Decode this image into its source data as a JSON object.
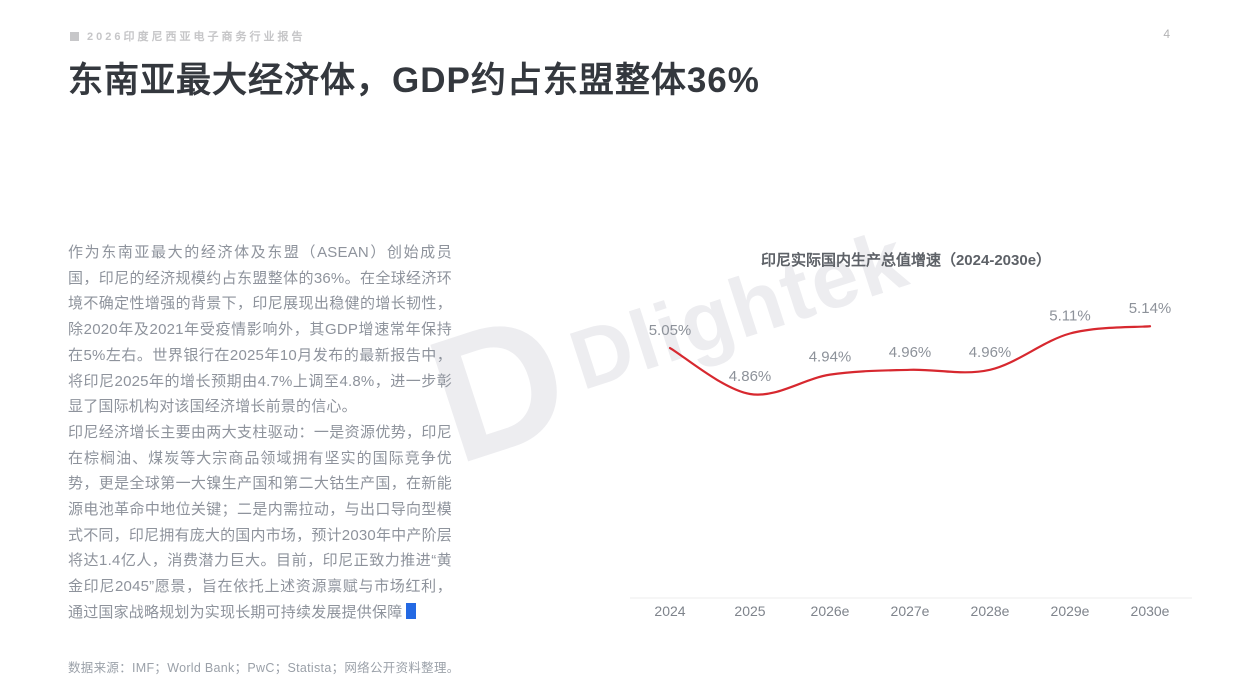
{
  "page": {
    "header": {
      "report_label": "2026印度尼西亚电子商务行业报告",
      "page_number": "4"
    },
    "title": "东南亚最大经济体，GDP约占东盟整体36%",
    "body": {
      "paragraph1": "作为东南亚最大的经济体及东盟（ASEAN）创始成员国，印尼的经济规模约占东盟整体的36%。在全球经济环境不确定性增强的背景下，印尼展现出稳健的增长韧性，除2020年及2021年受疫情影响外，其GDP增速常年保持在5%左右。世界银行在2025年10月发布的最新报告中，将印尼2025年的增长预期由4.7%上调至4.8%，进一步彰显了国际机构对该国经济增长前景的信心。",
      "paragraph2": "印尼经济增长主要由两大支柱驱动：一是资源优势，印尼在棕榈油、煤炭等大宗商品领域拥有坚实的国际竞争优势，更是全球第一大镍生产国和第二大钴生产国，在新能源电池革命中地位关键；二是内需拉动，与出口导向型模式不同，印尼拥有庞大的国内市场，预计2030年中产阶层将达1.4亿人，消费潜力巨大。目前，印尼正致力推进“黄金印尼2045”愿景，旨在依托上述资源禀赋与市场红利，通过国家战略规划为实现长期可持续发展提供保障"
    },
    "footer": {
      "source": "数据来源：IMF；World Bank；PwC；Statista；网络公开资料整理。"
    },
    "watermark": {
      "logo_letter": "D",
      "brand": "Dlightek"
    },
    "accent_blue": "#2469e3"
  },
  "chart_data": {
    "type": "line",
    "title": "印尼实际国内生产总值增速（2024-2030e）",
    "categories": [
      "2024",
      "2025",
      "2026e",
      "2027e",
      "2028e",
      "2029e",
      "2030e"
    ],
    "values": [
      5.05,
      4.86,
      4.94,
      4.96,
      4.96,
      5.11,
      5.14
    ],
    "labels": [
      "5.05%",
      "4.86%",
      "4.94%",
      "4.96%",
      "4.96%",
      "5.11%",
      "5.14%"
    ],
    "xlabel": "",
    "ylabel": "",
    "ylim": [
      4.7,
      5.3
    ],
    "grid": false,
    "legend_position": "none",
    "line_color": "#d7282f",
    "label_color": "#8d929a",
    "tick_color": "#7f848c",
    "axis_color": "#ececec"
  }
}
